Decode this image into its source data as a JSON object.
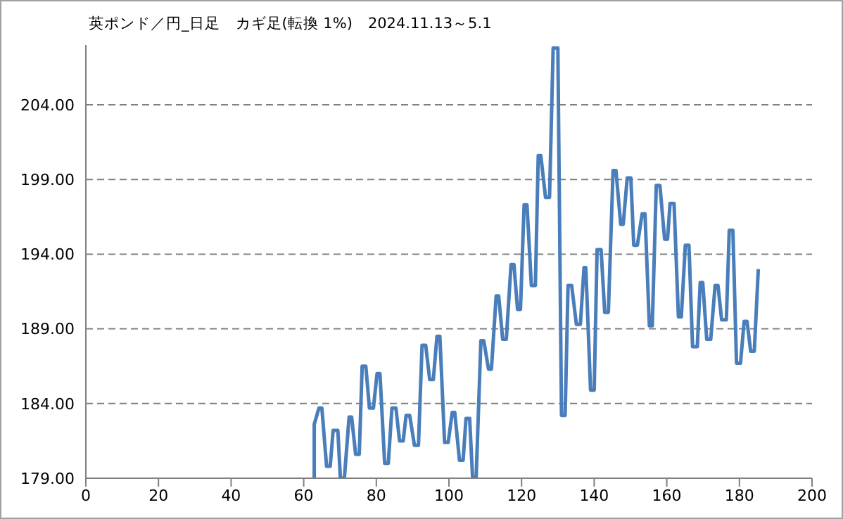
{
  "chart_data": {
    "type": "line",
    "title": "英ポンド／円_日足　カギ足(転換 1%)　2024.11.13～5.1",
    "xlim": [
      0,
      200
    ],
    "xticks": [
      0,
      20,
      40,
      60,
      80,
      100,
      120,
      140,
      160,
      180,
      200
    ],
    "ylim": [
      179,
      208
    ],
    "yticks": [
      {
        "value": 179,
        "label": "179.00"
      },
      {
        "value": 184,
        "label": "184.00"
      },
      {
        "value": 189,
        "label": "189.00"
      },
      {
        "value": 194,
        "label": "194.00"
      },
      {
        "value": 199,
        "label": "199.00"
      },
      {
        "value": 204,
        "label": "204.00"
      }
    ],
    "grid": "y",
    "line_style": "solid",
    "marker": "none",
    "series": [
      {
        "color": "#4a7ebb",
        "x": [
          62.9,
          62.9,
          64.2,
          65.0,
          66.3,
          67.3,
          68.1,
          69.4,
          70.1,
          71.2,
          72.5,
          73.2,
          74.3,
          75.3,
          76.1,
          77.1,
          78.1,
          79.2,
          80.2,
          81.0,
          82.3,
          83.3,
          84.3,
          85.4,
          86.4,
          87.4,
          88.2,
          89.2,
          90.5,
          91.6,
          92.6,
          93.6,
          94.7,
          95.7,
          96.7,
          97.5,
          98.8,
          99.8,
          100.9,
          101.6,
          102.9,
          103.9,
          104.7,
          105.7,
          106.5,
          107.5,
          108.8,
          109.6,
          110.9,
          111.7,
          113.0,
          113.7,
          114.8,
          115.8,
          117.1,
          117.9,
          118.9,
          119.7,
          120.7,
          121.5,
          122.7,
          123.8,
          124.6,
          125.3,
          126.6,
          127.7,
          128.7,
          130.0,
          131.0,
          132.0,
          132.8,
          133.8,
          135.1,
          136.2,
          137.2,
          137.7,
          139.0,
          140.0,
          140.8,
          141.9,
          142.9,
          143.9,
          145.2,
          146.0,
          147.3,
          148.0,
          149.1,
          150.1,
          150.9,
          151.9,
          153.2,
          154.0,
          155.2,
          156.0,
          157.1,
          158.1,
          159.4,
          160.2,
          160.9,
          162.0,
          163.2,
          164.0,
          165.1,
          166.1,
          167.1,
          168.4,
          169.2,
          169.9,
          171.0,
          172.1,
          173.3,
          174.1,
          175.1,
          176.4,
          177.2,
          178.2,
          179.2,
          180.3,
          181.3,
          182.1,
          183.1,
          184.1,
          185.2
        ],
        "values": [
          179.0,
          182.6,
          183.7,
          183.7,
          179.8,
          179.8,
          182.2,
          182.2,
          179.0,
          179.0,
          183.1,
          183.1,
          180.6,
          180.6,
          186.5,
          186.5,
          183.7,
          183.7,
          186.0,
          186.0,
          180.0,
          180.0,
          183.7,
          183.7,
          181.5,
          181.5,
          183.2,
          183.2,
          181.2,
          181.2,
          187.9,
          187.9,
          185.6,
          185.6,
          188.5,
          188.5,
          181.4,
          181.4,
          183.4,
          183.4,
          180.2,
          180.2,
          183.0,
          183.0,
          179.1,
          179.1,
          188.2,
          188.2,
          186.3,
          186.3,
          191.2,
          191.2,
          188.3,
          188.3,
          193.3,
          193.3,
          190.3,
          190.3,
          197.3,
          197.3,
          191.9,
          191.9,
          200.6,
          200.6,
          197.8,
          197.8,
          207.8,
          207.8,
          183.2,
          183.2,
          191.9,
          191.9,
          189.3,
          189.3,
          193.1,
          193.1,
          184.9,
          184.9,
          194.3,
          194.3,
          190.1,
          190.1,
          199.6,
          199.6,
          196.0,
          196.0,
          199.1,
          199.1,
          194.6,
          194.6,
          196.7,
          196.7,
          189.2,
          189.2,
          198.6,
          198.6,
          195.0,
          195.0,
          197.4,
          197.4,
          189.8,
          189.8,
          194.6,
          194.6,
          187.8,
          187.8,
          192.1,
          192.1,
          188.3,
          188.3,
          191.9,
          191.9,
          189.6,
          189.6,
          195.6,
          195.6,
          186.7,
          186.7,
          189.5,
          189.5,
          187.5,
          187.5,
          193.0
        ]
      }
    ]
  }
}
